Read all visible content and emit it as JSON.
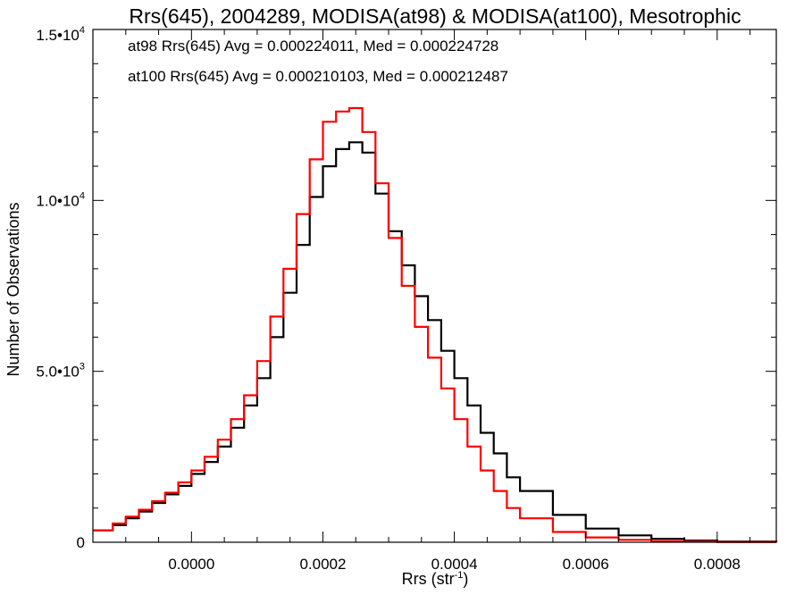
{
  "chart_data": {
    "type": "line",
    "step": true,
    "title": "Rrs(645), 2004289, MODISA(at98) & MODISA(at100), Mesotrophic",
    "xlabel": "Rrs (str",
    "xlabel_sup": "-1",
    "xlabel_tail": ")",
    "ylabel": "Number of Observations",
    "xlim": [
      -0.00015,
      0.00089
    ],
    "ylim": [
      0,
      15000
    ],
    "x_ticks": [
      {
        "value": 0.0,
        "label": "0.0000"
      },
      {
        "value": 0.0002,
        "label": "0.0002"
      },
      {
        "value": 0.0004,
        "label": "0.0004"
      },
      {
        "value": 0.0006,
        "label": "0.0006"
      },
      {
        "value": 0.0008,
        "label": "0.0008"
      }
    ],
    "y_ticks": [
      {
        "value": 0,
        "base": "0",
        "exp": ""
      },
      {
        "value": 5000,
        "base": "5.0•10",
        "exp": "3"
      },
      {
        "value": 10000,
        "base": "1.0•10",
        "exp": "4"
      },
      {
        "value": 15000,
        "base": "1.5•10",
        "exp": "4"
      }
    ],
    "annotations": [
      {
        "text": "at98 Rrs(645) Avg = 0.000224011, Med = 0.000224728",
        "color": "#000000"
      },
      {
        "text": "at100 Rrs(645) Avg = 0.000210103, Med = 0.000212487",
        "color": "#ff0000"
      }
    ],
    "series": [
      {
        "color": "#000000",
        "x": [
          -0.00015,
          -0.00012,
          -0.0001,
          -8e-05,
          -6e-05,
          -4e-05,
          -2e-05,
          0.0,
          2e-05,
          4e-05,
          6e-05,
          8e-05,
          0.0001,
          0.00012,
          0.00014,
          0.00016,
          0.00018,
          0.0002,
          0.00022,
          0.00024,
          0.00026,
          0.00028,
          0.0003,
          0.00032,
          0.00034,
          0.00036,
          0.00038,
          0.0004,
          0.00042,
          0.00044,
          0.00046,
          0.00048,
          0.0005,
          0.00055,
          0.0006,
          0.00065,
          0.0007,
          0.00075,
          0.0008,
          0.00089
        ],
        "y": [
          350,
          500,
          700,
          900,
          1150,
          1400,
          1650,
          2000,
          2350,
          2800,
          3350,
          4000,
          4800,
          6000,
          7300,
          8700,
          10100,
          11000,
          11500,
          11700,
          11400,
          10200,
          9100,
          8100,
          7200,
          6500,
          5600,
          4800,
          4000,
          3200,
          2600,
          1900,
          1500,
          800,
          400,
          200,
          100,
          50,
          20,
          5
        ]
      },
      {
        "color": "#ff0000",
        "x": [
          -0.00015,
          -0.00012,
          -0.0001,
          -8e-05,
          -6e-05,
          -4e-05,
          -2e-05,
          0.0,
          2e-05,
          4e-05,
          6e-05,
          8e-05,
          0.0001,
          0.00012,
          0.00014,
          0.00016,
          0.00018,
          0.0002,
          0.00022,
          0.00024,
          0.00026,
          0.00028,
          0.0003,
          0.00032,
          0.00034,
          0.00036,
          0.00038,
          0.0004,
          0.00042,
          0.00044,
          0.00046,
          0.00048,
          0.0005,
          0.00055,
          0.0006,
          0.00065,
          0.0007,
          0.00075,
          0.0008,
          0.00089
        ],
        "y": [
          350,
          550,
          750,
          950,
          1200,
          1450,
          1750,
          2100,
          2500,
          3000,
          3600,
          4300,
          5300,
          6600,
          8000,
          9600,
          11200,
          12300,
          12600,
          12700,
          12000,
          10500,
          8900,
          7500,
          6300,
          5400,
          4500,
          3600,
          2800,
          2100,
          1500,
          1000,
          700,
          300,
          140,
          70,
          30,
          15,
          5,
          2
        ]
      }
    ]
  }
}
